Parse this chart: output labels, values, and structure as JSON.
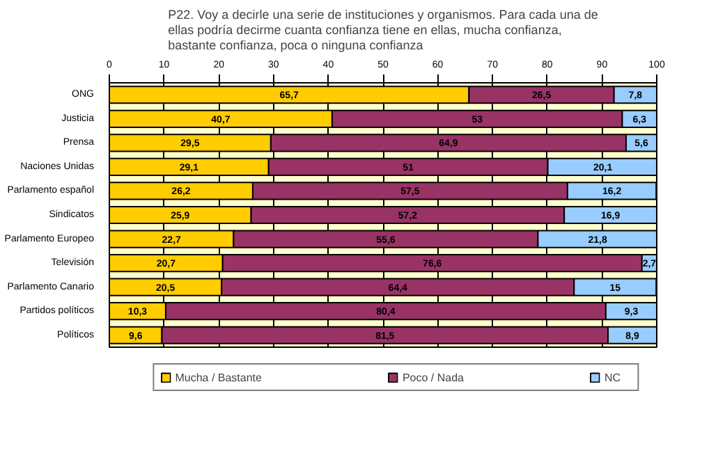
{
  "chart_data": {
    "type": "bar",
    "orientation": "horizontal",
    "stacked": true,
    "title": "P22. Voy a decirle una serie de instituciones y organismos. Para cada una de\nellas podría decirme cuanta confianza tiene en ellas, mucha confianza,\nbastante confianza, poca o ninguna confianza",
    "categories": [
      "ONG",
      "Justicia",
      "Prensa",
      "Naciones Unidas",
      "Parlamento español",
      "Sindicatos",
      "Parlamento Europeo",
      "Televisión",
      "Parlamento Canario",
      "Partidos políticos",
      "Políticos"
    ],
    "series": [
      {
        "name": "Mucha / Bastante",
        "color": "#ffcc00",
        "values": [
          65.7,
          40.7,
          29.5,
          29.1,
          26.2,
          25.9,
          22.7,
          20.7,
          20.5,
          10.3,
          9.6
        ],
        "value_labels": [
          "65,7",
          "40,7",
          "29,5",
          "29,1",
          "26,2",
          "25,9",
          "22,7",
          "20,7",
          "20,5",
          "10,3",
          "9,6"
        ]
      },
      {
        "name": "Poco / Nada",
        "color": "#993366",
        "values": [
          26.5,
          53,
          64.9,
          51,
          57.5,
          57.2,
          55.6,
          76.6,
          64.4,
          80.4,
          81.5
        ],
        "value_labels": [
          "26,5",
          "53",
          "64,9",
          "51",
          "57,5",
          "57,2",
          "55,6",
          "76,6",
          "64,4",
          "80,4",
          "81,5"
        ]
      },
      {
        "name": "NC",
        "color": "#99ccff",
        "values": [
          7.8,
          6.3,
          5.6,
          20.1,
          16.2,
          16.9,
          21.8,
          2.7,
          15,
          9.3,
          8.9
        ],
        "value_labels": [
          "7,8",
          "6,3",
          "5,6",
          "20,1",
          "16,2",
          "16,9",
          "21,8",
          "2,7",
          "15",
          "9,3",
          "8,9"
        ]
      }
    ],
    "xlim": [
      0,
      100
    ],
    "xticks": [
      0,
      10,
      20,
      30,
      40,
      50,
      60,
      70,
      80,
      90,
      100
    ],
    "grid": "x",
    "legend": "bottom"
  }
}
